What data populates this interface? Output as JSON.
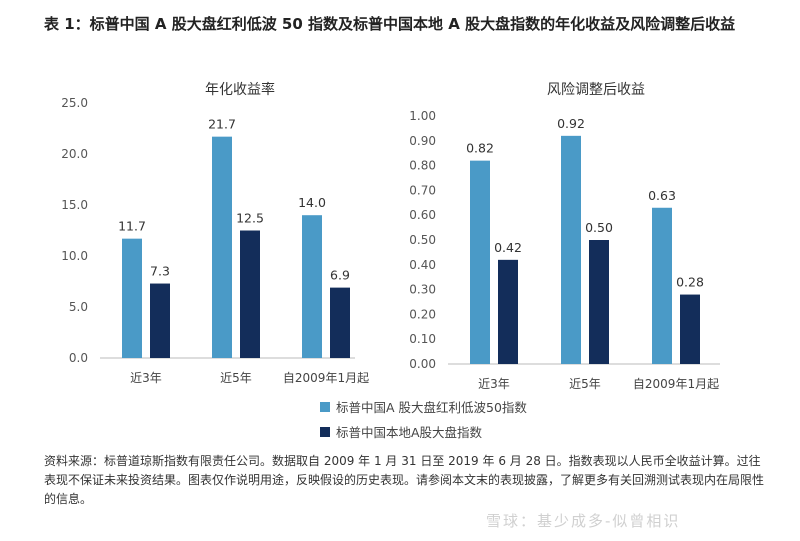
{
  "title": "表 1：标普中国 A 股大盘红利低波 50 指数及标普中国本地 A 股大盘指数的年化收益及风险调整后收益",
  "colors": {
    "series1": "#4a9ac7",
    "series2": "#132d5a"
  },
  "legend": {
    "position": "bottom-center",
    "items": [
      "标普中国A 股大盘红利低波50指数",
      "标普中国本地A股大盘指数"
    ]
  },
  "chart_data": [
    {
      "type": "bar",
      "title": "年化收益率",
      "categories": [
        "近3年",
        "近5年",
        "自2009年1月起"
      ],
      "series": [
        {
          "name": "标普中国A 股大盘红利低波50指数",
          "values": [
            11.7,
            21.7,
            14.0
          ],
          "labels": [
            "11.7",
            "21.7",
            "14.0"
          ]
        },
        {
          "name": "标普中国本地A股大盘指数",
          "values": [
            7.3,
            12.5,
            6.9
          ],
          "labels": [
            "7.3",
            "12.5",
            "6.9"
          ]
        }
      ],
      "ylim": [
        0,
        25
      ],
      "yticks": [
        "0.0",
        "5.0",
        "10.0",
        "15.0",
        "20.0",
        "25.0"
      ],
      "grid": false
    },
    {
      "type": "bar",
      "title": "风险调整后收益",
      "categories": [
        "近3年",
        "近5年",
        "自2009年1月起"
      ],
      "series": [
        {
          "name": "标普中国A 股大盘红利低波50指数",
          "values": [
            0.82,
            0.92,
            0.63
          ],
          "labels": [
            "0.82",
            "0.92",
            "0.63"
          ]
        },
        {
          "name": "标普中国本地A股大盘指数",
          "values": [
            0.42,
            0.5,
            0.28
          ],
          "labels": [
            "0.42",
            "0.50",
            "0.28"
          ]
        }
      ],
      "ylim": [
        0,
        1
      ],
      "yticks": [
        "0.00",
        "0.10",
        "0.20",
        "0.30",
        "0.40",
        "0.50",
        "0.60",
        "0.70",
        "0.80",
        "0.90",
        "1.00"
      ],
      "grid": false
    }
  ],
  "source": "资料来源：标普道琼斯指数有限责任公司。数据取自 2009 年 1 月 31 日至 2019 年 6 月 28 日。指数表现以人民币全收益计算。过往表现不保证未来投资结果。图表仅作说明用途，反映假设的历史表现。请参阅本文末的表现披露，了解更多有关回溯测试表现内在局限性的信息。",
  "watermark": "雪球：基少成多-似曾相识"
}
